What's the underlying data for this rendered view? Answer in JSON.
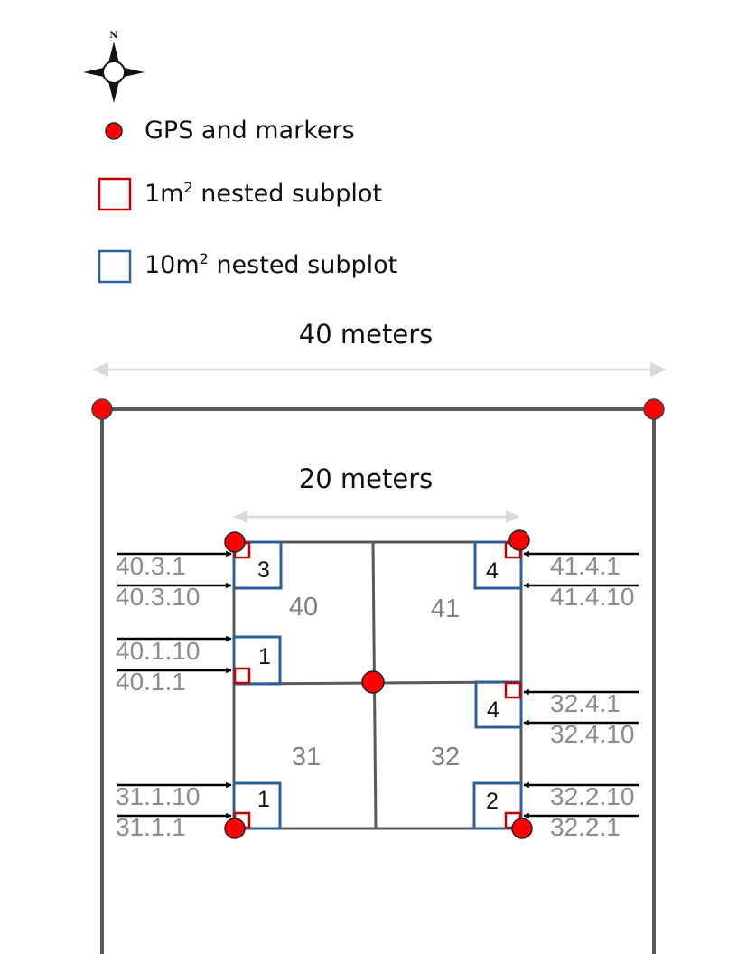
{
  "colors": {
    "marker": "#ff0000",
    "marker_outline": "#222222",
    "subplot_1m": "#c00000",
    "subplot_10m": "#2e5f98",
    "plot_line": "#595959",
    "dimension_arrow": "#d9d9d9",
    "id_text": "#8c8c8c",
    "plot_number": "#808080"
  },
  "compass": {
    "north_label": "N"
  },
  "legend": {
    "gps": "GPS and markers",
    "subplot_1m": {
      "pre": "1m",
      "sup": "2",
      "post": " nested subplot"
    },
    "subplot_10m": {
      "pre": "10m",
      "sup": "2",
      "post": " nested subplot"
    }
  },
  "dimensions": {
    "outer": "40 meters",
    "inner": "20 meters"
  },
  "plots": [
    "40",
    "41",
    "31",
    "32"
  ],
  "subplots": [
    {
      "label": "3",
      "ids": [
        "40.3.1",
        "40.3.10"
      ]
    },
    {
      "label": "4",
      "ids": [
        "41.4.1",
        "41.4.10"
      ]
    },
    {
      "label": "1",
      "ids": [
        "40.1.10",
        "40.1.1"
      ]
    },
    {
      "label": "4",
      "ids": [
        "32.4.1",
        "32.4.10"
      ]
    },
    {
      "label": "1",
      "ids": [
        "31.1.10",
        "31.1.1"
      ]
    },
    {
      "label": "2",
      "ids": [
        "32.2.10",
        "32.2.1"
      ]
    }
  ]
}
